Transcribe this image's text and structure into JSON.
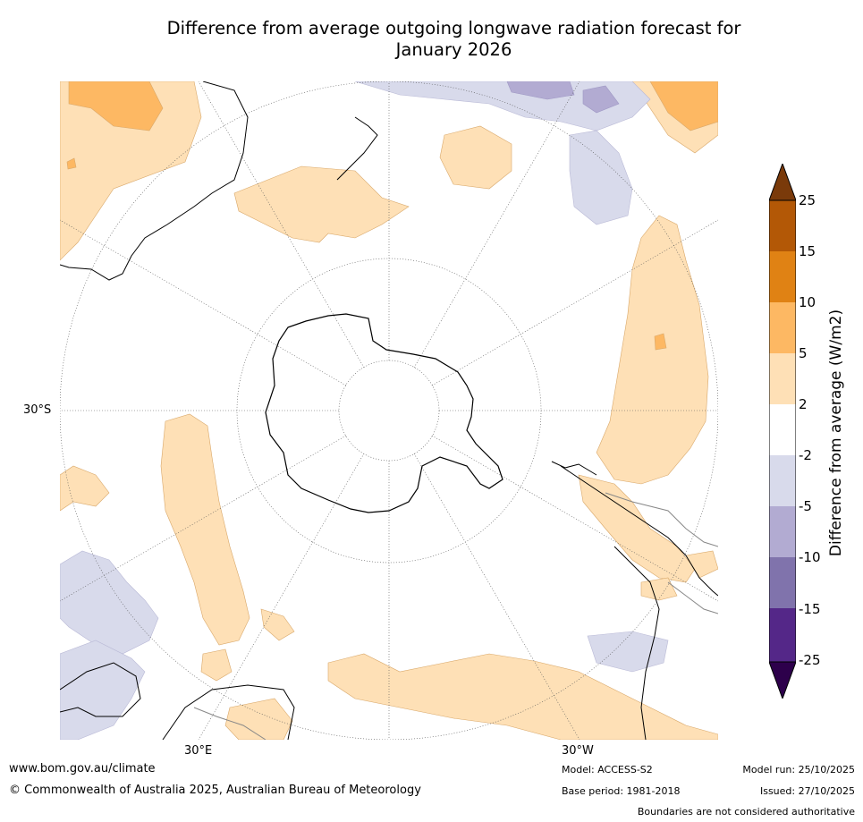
{
  "title_line1": "Difference from average outgoing longwave radiation forecast for",
  "title_line2": "January 2026",
  "map": {
    "lat_label": "30°S",
    "lon_labels": [
      "30°E",
      "30°W"
    ]
  },
  "colorbar": {
    "title": "Difference from average (W/m2)",
    "ticks": [
      "25",
      "15",
      "10",
      "5",
      "2",
      "-2",
      "-5",
      "-10",
      "-15",
      "-25"
    ],
    "colors": {
      "over": "#7a3a0a",
      "c15_25": "#b35806",
      "c10_15": "#e08214",
      "c5_10": "#fdb863",
      "c2_5": "#fee0b6",
      "neutral": "#ffffff",
      "m5_m2": "#d8daeb",
      "m10_m5": "#b2abd2",
      "m15_m10": "#8073ac",
      "m25_m15": "#542788",
      "under": "#2d004b"
    }
  },
  "footer": {
    "url": "www.bom.gov.au/climate",
    "copyright": "© Commonwealth of Australia 2025, Australian Bureau of Meteorology",
    "model": "Model: ACCESS-S2",
    "base_period": "Base period: 1981-2018",
    "model_run": "Model run: 25/10/2025",
    "issued": "Issued: 27/10/2025",
    "disclaimer": "Boundaries are not considered authoritative"
  }
}
